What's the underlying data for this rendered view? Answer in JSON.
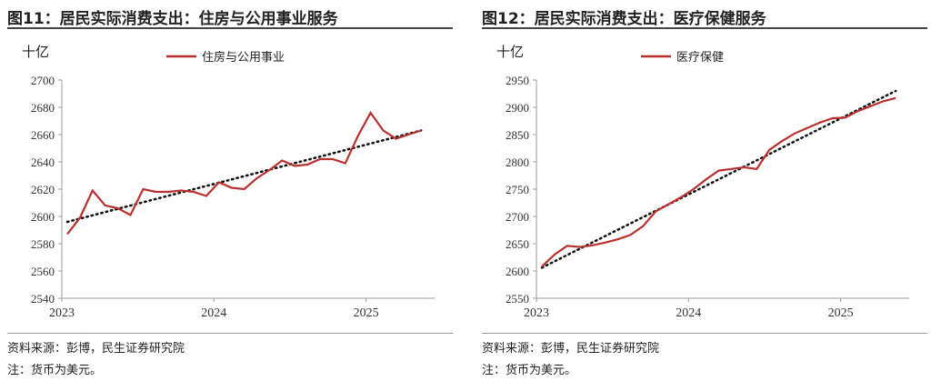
{
  "chart_data": [
    {
      "type": "line",
      "title": "图11：居民实际消费支出：住房与公用事业服务",
      "unit": "十亿",
      "legend": "住房与公用事业",
      "x_ticks": [
        "2023",
        "2024",
        "2025"
      ],
      "y_ticks": [
        2540,
        2560,
        2580,
        2600,
        2620,
        2640,
        2660,
        2680,
        2700
      ],
      "ylim": [
        2540,
        2700
      ],
      "x_start": "2023-01",
      "frequency": "monthly",
      "values": [
        2587,
        2599,
        2619,
        2608,
        2606,
        2601,
        2620,
        2618,
        2618,
        2619,
        2618,
        2615,
        2625,
        2621,
        2620,
        2628,
        2634,
        2641,
        2637,
        2638,
        2642,
        2642,
        2639,
        2659,
        2676,
        2663,
        2657,
        2660,
        2663
      ],
      "trendline": [
        2596,
        2663
      ],
      "color": "#b8312f",
      "source": "资料来源：彭博，民生证券研究院",
      "note": "注：货币为美元。"
    },
    {
      "type": "line",
      "title": "图12：居民实际消费支出：医疗保健服务",
      "unit": "十亿",
      "legend": "医疗保健",
      "x_ticks": [
        "2023",
        "2024",
        "2025"
      ],
      "y_ticks": [
        2550,
        2600,
        2650,
        2700,
        2750,
        2800,
        2850,
        2900,
        2950
      ],
      "ylim": [
        2550,
        2950
      ],
      "x_start": "2023-01",
      "frequency": "monthly",
      "values": [
        2608,
        2630,
        2646,
        2644,
        2647,
        2652,
        2658,
        2666,
        2682,
        2709,
        2722,
        2735,
        2750,
        2768,
        2784,
        2787,
        2790,
        2787,
        2822,
        2838,
        2852,
        2862,
        2872,
        2880,
        2881,
        2893,
        2902,
        2911,
        2917
      ],
      "trendline": [
        2606,
        2930
      ],
      "color": "#b8312f",
      "source": "资料来源：彭博，民生证券研究院",
      "note": "注：货币为美元。"
    }
  ]
}
